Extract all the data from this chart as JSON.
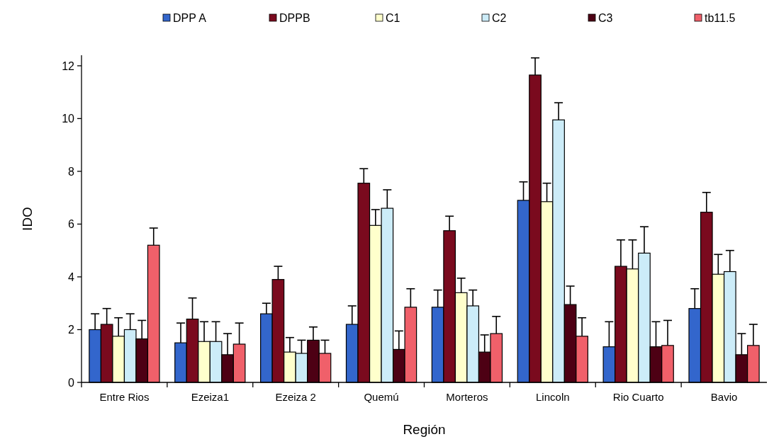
{
  "chart_data": {
    "type": "bar",
    "xlabel": "Región",
    "ylabel": "IDO",
    "categories": [
      "Entre Rios",
      "Ezeiza1",
      "Ezeiza 2",
      "Quemú",
      "Morteros",
      "Lincoln",
      "Rio Cuarto",
      "Bavio"
    ],
    "ylim": [
      0,
      12.4
    ],
    "yticks": [
      0,
      2,
      4,
      6,
      8,
      10,
      12
    ],
    "grid": false,
    "legend": "top",
    "series": [
      {
        "name": "DPP A",
        "color": "#3366cc",
        "values": [
          2.0,
          1.5,
          2.6,
          2.2,
          2.85,
          6.9,
          1.35,
          2.8
        ],
        "errors": [
          [
            2.0,
            2.6
          ],
          [
            1.5,
            2.25
          ],
          [
            2.6,
            3.0
          ],
          [
            2.2,
            2.9
          ],
          [
            2.85,
            3.5
          ],
          [
            6.9,
            7.6
          ],
          [
            1.35,
            2.3
          ],
          [
            2.8,
            3.55
          ]
        ]
      },
      {
        "name": "DPPB",
        "color": "#7a0a1e",
        "values": [
          2.2,
          2.4,
          3.9,
          7.55,
          5.75,
          11.65,
          4.4,
          6.45
        ],
        "errors": [
          [
            2.2,
            2.8
          ],
          [
            2.4,
            3.2
          ],
          [
            3.9,
            4.4
          ],
          [
            7.55,
            8.1
          ],
          [
            5.75,
            6.3
          ],
          [
            11.65,
            12.3
          ],
          [
            4.4,
            5.4
          ],
          [
            6.45,
            7.2
          ]
        ]
      },
      {
        "name": "C1",
        "color": "#ffffcc",
        "values": [
          1.75,
          1.55,
          1.15,
          5.95,
          3.4,
          6.85,
          4.3,
          4.1
        ],
        "errors": [
          [
            1.75,
            2.45
          ],
          [
            1.55,
            2.3
          ],
          [
            1.15,
            1.7
          ],
          [
            5.95,
            6.55
          ],
          [
            3.4,
            3.95
          ],
          [
            6.85,
            7.55
          ],
          [
            4.3,
            5.4
          ],
          [
            4.1,
            4.85
          ]
        ]
      },
      {
        "name": "C2",
        "color": "#ccecf8",
        "values": [
          2.0,
          1.55,
          1.1,
          6.6,
          2.9,
          9.95,
          4.9,
          4.2
        ],
        "errors": [
          [
            2.0,
            2.6
          ],
          [
            1.55,
            2.3
          ],
          [
            1.1,
            1.6
          ],
          [
            6.6,
            7.3
          ],
          [
            2.9,
            3.5
          ],
          [
            9.95,
            10.6
          ],
          [
            4.9,
            5.9
          ],
          [
            4.2,
            5.0
          ]
        ]
      },
      {
        "name": "C3",
        "color": "#4d0014",
        "values": [
          1.65,
          1.05,
          1.6,
          1.25,
          1.15,
          2.95,
          1.35,
          1.05
        ],
        "errors": [
          [
            1.65,
            2.35
          ],
          [
            1.05,
            1.85
          ],
          [
            1.6,
            2.1
          ],
          [
            1.25,
            1.95
          ],
          [
            1.15,
            1.8
          ],
          [
            2.95,
            3.65
          ],
          [
            1.35,
            2.3
          ],
          [
            1.05,
            1.85
          ]
        ]
      },
      {
        "name": "tb11.5",
        "color": "#f0606a",
        "values": [
          5.2,
          1.45,
          1.1,
          2.85,
          1.85,
          1.75,
          1.4,
          1.4
        ],
        "errors": [
          [
            5.2,
            5.85
          ],
          [
            1.45,
            2.25
          ],
          [
            1.1,
            1.6
          ],
          [
            2.85,
            3.55
          ],
          [
            1.85,
            2.5
          ],
          [
            1.75,
            2.45
          ],
          [
            1.4,
            2.35
          ],
          [
            1.4,
            2.2
          ]
        ]
      }
    ]
  }
}
